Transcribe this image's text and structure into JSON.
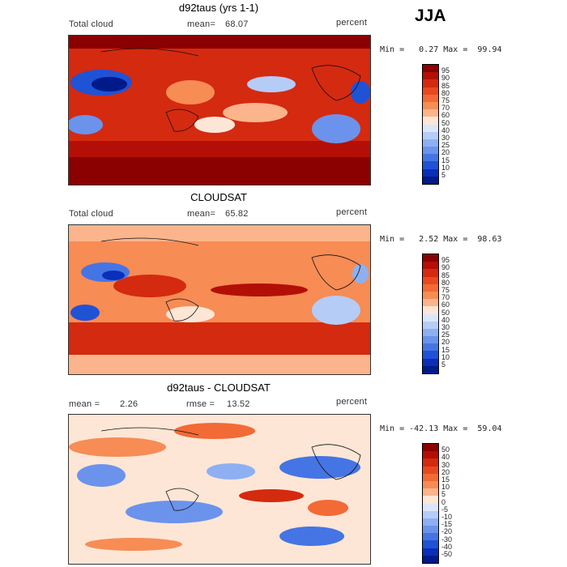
{
  "season": "JJA",
  "panels": [
    {
      "title": "d92taus (yrs 1-1)",
      "left_label": "Total cloud",
      "mean_label": "mean=",
      "mean_value": "68.07",
      "mid_label": "",
      "mid_value": "",
      "unit": "percent",
      "minmax": "Min =   0.27 Max =  99.94",
      "colorbar_levels": [
        "95",
        "90",
        "85",
        "80",
        "75",
        "70",
        "60",
        "50",
        "40",
        "30",
        "25",
        "20",
        "15",
        "10",
        "5"
      ],
      "colorbar_colors": [
        "#8b0000",
        "#b40f06",
        "#d42a10",
        "#e84a1e",
        "#f26a35",
        "#f78c55",
        "#fbb48c",
        "#fde6d6",
        "#dbe6fb",
        "#b5ccf7",
        "#8eb0f2",
        "#6b93ec",
        "#4575e4",
        "#2052d6",
        "#0a2fb8",
        "#001a8a"
      ]
    },
    {
      "title": "CLOUDSAT",
      "left_label": "Total cloud",
      "mean_label": "mean=",
      "mean_value": "65.82",
      "mid_label": "",
      "mid_value": "",
      "unit": "percent",
      "minmax": "Min =   2.52 Max =  98.63",
      "colorbar_levels": [
        "95",
        "90",
        "85",
        "80",
        "75",
        "70",
        "60",
        "50",
        "40",
        "30",
        "25",
        "20",
        "15",
        "10",
        "5"
      ],
      "colorbar_colors": [
        "#8b0000",
        "#b40f06",
        "#d42a10",
        "#e84a1e",
        "#f26a35",
        "#f78c55",
        "#fbb48c",
        "#fde6d6",
        "#dbe6fb",
        "#b5ccf7",
        "#8eb0f2",
        "#6b93ec",
        "#4575e4",
        "#2052d6",
        "#0a2fb8",
        "#001a8a"
      ]
    },
    {
      "title": "d92taus - CLOUDSAT",
      "left_label": "mean =",
      "mean_label": "",
      "mean_value": "2.26",
      "mid_label": "rmse =",
      "mid_value": "13.52",
      "unit": "percent",
      "minmax": "Min = -42.13 Max =  59.04",
      "colorbar_levels": [
        "50",
        "40",
        "30",
        "20",
        "15",
        "10",
        "5",
        "0",
        "-5",
        "-10",
        "-15",
        "-20",
        "-30",
        "-40",
        "-50"
      ],
      "colorbar_colors": [
        "#8b0000",
        "#b40f06",
        "#d42a10",
        "#e84a1e",
        "#f26a35",
        "#f78c55",
        "#fbb48c",
        "#fde6d6",
        "#dbe6fb",
        "#b5ccf7",
        "#8eb0f2",
        "#6b93ec",
        "#4575e4",
        "#2052d6",
        "#0a2fb8",
        "#001a8a"
      ]
    }
  ],
  "chart_data": [
    {
      "type": "heatmap",
      "title": "d92taus (yrs 1-1)",
      "variable": "Total cloud",
      "unit": "percent",
      "season": "JJA",
      "mean": 68.07,
      "min": 0.27,
      "max": 99.94,
      "contour_levels": [
        5,
        10,
        15,
        20,
        25,
        30,
        40,
        50,
        60,
        70,
        75,
        80,
        85,
        90,
        95
      ]
    },
    {
      "type": "heatmap",
      "title": "CLOUDSAT",
      "variable": "Total cloud",
      "unit": "percent",
      "season": "JJA",
      "mean": 65.82,
      "min": 2.52,
      "max": 98.63,
      "contour_levels": [
        5,
        10,
        15,
        20,
        25,
        30,
        40,
        50,
        60,
        70,
        75,
        80,
        85,
        90,
        95
      ]
    },
    {
      "type": "heatmap",
      "title": "d92taus - CLOUDSAT",
      "unit": "percent",
      "season": "JJA",
      "mean": 2.26,
      "rmse": 13.52,
      "min": -42.13,
      "max": 59.04,
      "contour_levels": [
        -50,
        -40,
        -30,
        -20,
        -15,
        -10,
        -5,
        0,
        5,
        10,
        15,
        20,
        30,
        40,
        50
      ]
    }
  ]
}
